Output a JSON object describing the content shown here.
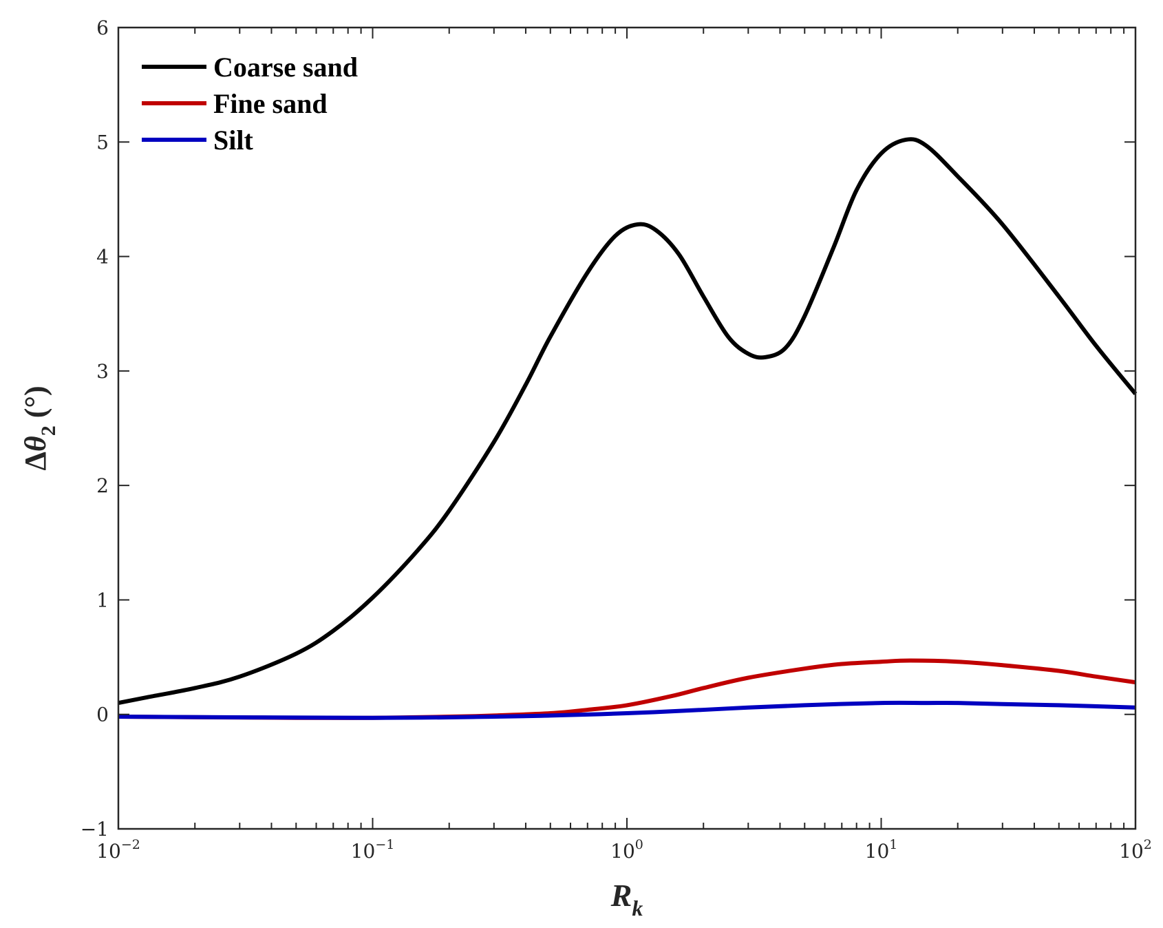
{
  "chart_data": {
    "type": "line",
    "xscale": "log",
    "xlim": [
      0.01,
      100
    ],
    "ylim": [
      -1,
      6
    ],
    "x_ticks": [
      {
        "value": 0.01,
        "base": "10",
        "exp": "−2"
      },
      {
        "value": 0.1,
        "base": "10",
        "exp": "−1"
      },
      {
        "value": 1,
        "base": "10",
        "exp": "0"
      },
      {
        "value": 10,
        "base": "10",
        "exp": "1"
      },
      {
        "value": 100,
        "base": "10",
        "exp": "2"
      }
    ],
    "y_ticks": [
      {
        "value": -1,
        "label": "−1"
      },
      {
        "value": 0,
        "label": "0"
      },
      {
        "value": 1,
        "label": "1"
      },
      {
        "value": 2,
        "label": "2"
      },
      {
        "value": 3,
        "label": "3"
      },
      {
        "value": 4,
        "label": "4"
      },
      {
        "value": 5,
        "label": "5"
      },
      {
        "value": 6,
        "label": "6"
      }
    ],
    "xlabel": {
      "main": "R",
      "sub": "k"
    },
    "ylabel": {
      "prefix": "Δ",
      "symbol": "θ",
      "sub": "2",
      "unit": " (°)"
    },
    "legend_position": "top-left",
    "grid": false,
    "series": [
      {
        "name": "Coarse sand",
        "color": "#000000",
        "points": [
          [
            0.01,
            0.1
          ],
          [
            0.013,
            0.15
          ],
          [
            0.02,
            0.23
          ],
          [
            0.03,
            0.33
          ],
          [
            0.05,
            0.53
          ],
          [
            0.07,
            0.73
          ],
          [
            0.1,
            1.02
          ],
          [
            0.15,
            1.43
          ],
          [
            0.2,
            1.78
          ],
          [
            0.3,
            2.38
          ],
          [
            0.4,
            2.88
          ],
          [
            0.5,
            3.3
          ],
          [
            0.7,
            3.86
          ],
          [
            0.9,
            4.18
          ],
          [
            1.1,
            4.28
          ],
          [
            1.3,
            4.23
          ],
          [
            1.6,
            4.02
          ],
          [
            2.0,
            3.65
          ],
          [
            2.5,
            3.3
          ],
          [
            3.0,
            3.15
          ],
          [
            3.5,
            3.12
          ],
          [
            4.2,
            3.2
          ],
          [
            5.0,
            3.48
          ],
          [
            6.5,
            4.08
          ],
          [
            8.0,
            4.58
          ],
          [
            10.0,
            4.9
          ],
          [
            12.5,
            5.02
          ],
          [
            15.0,
            4.97
          ],
          [
            20.0,
            4.7
          ],
          [
            30.0,
            4.28
          ],
          [
            50.0,
            3.65
          ],
          [
            70.0,
            3.22
          ],
          [
            100.0,
            2.8
          ]
        ]
      },
      {
        "name": "Fine sand",
        "color": "#c00000",
        "points": [
          [
            0.01,
            -0.02
          ],
          [
            0.05,
            -0.03
          ],
          [
            0.1,
            -0.03
          ],
          [
            0.2,
            -0.02
          ],
          [
            0.3,
            -0.01
          ],
          [
            0.5,
            0.01
          ],
          [
            0.7,
            0.04
          ],
          [
            1.0,
            0.08
          ],
          [
            1.5,
            0.16
          ],
          [
            2.0,
            0.23
          ],
          [
            3.0,
            0.32
          ],
          [
            5.0,
            0.4
          ],
          [
            7.0,
            0.44
          ],
          [
            10.0,
            0.46
          ],
          [
            13.0,
            0.47
          ],
          [
            20.0,
            0.46
          ],
          [
            30.0,
            0.43
          ],
          [
            50.0,
            0.38
          ],
          [
            70.0,
            0.33
          ],
          [
            100.0,
            0.28
          ]
        ]
      },
      {
        "name": "Silt",
        "color": "#0000c0",
        "points": [
          [
            0.01,
            -0.02
          ],
          [
            0.1,
            -0.03
          ],
          [
            0.3,
            -0.02
          ],
          [
            0.5,
            -0.01
          ],
          [
            1.0,
            0.01
          ],
          [
            2.0,
            0.04
          ],
          [
            3.0,
            0.06
          ],
          [
            5.0,
            0.08
          ],
          [
            10.0,
            0.1
          ],
          [
            15.0,
            0.1
          ],
          [
            20.0,
            0.1
          ],
          [
            30.0,
            0.09
          ],
          [
            50.0,
            0.08
          ],
          [
            100.0,
            0.06
          ]
        ]
      }
    ]
  }
}
